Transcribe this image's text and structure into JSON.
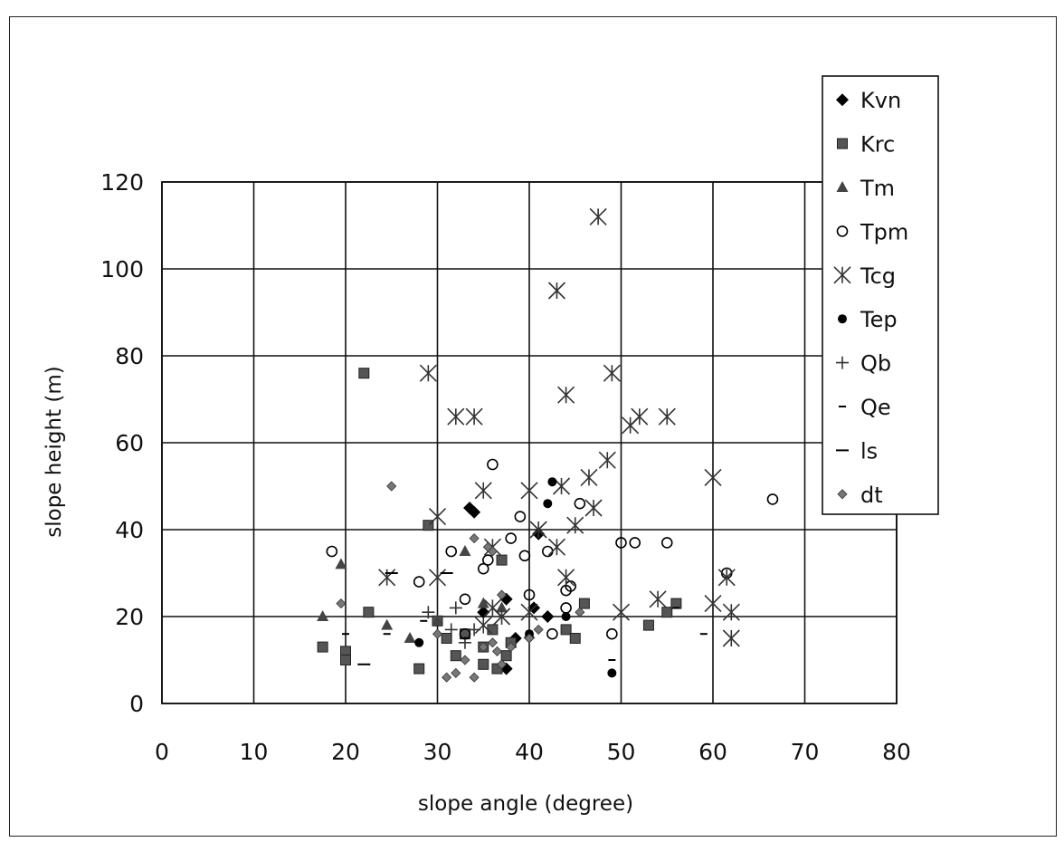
{
  "chart_data": {
    "type": "scatter",
    "xlabel": "slope angle (degree)",
    "ylabel": "slope height (m)",
    "xlim": [
      0,
      80
    ],
    "ylim": [
      0,
      120
    ],
    "xticks": [
      "0",
      "10",
      "20",
      "30",
      "40",
      "50",
      "60",
      "70",
      "80"
    ],
    "yticks": [
      "0",
      "20",
      "40",
      "60",
      "80",
      "100",
      "120"
    ],
    "grid": true,
    "legend_position": "top-right",
    "series": [
      {
        "name": "Kvn",
        "marker": "diamond",
        "color": "#000000",
        "points": [
          [
            33.5,
            45
          ],
          [
            34,
            44
          ],
          [
            37.5,
            24
          ],
          [
            38.5,
            15
          ],
          [
            37.5,
            8
          ],
          [
            42,
            20
          ],
          [
            41,
            39
          ],
          [
            40.5,
            22
          ],
          [
            35,
            21
          ]
        ]
      },
      {
        "name": "Krc",
        "marker": "square",
        "color": "#555555",
        "points": [
          [
            22,
            76
          ],
          [
            17.5,
            13
          ],
          [
            20,
            12
          ],
          [
            20,
            10
          ],
          [
            22.5,
            21
          ],
          [
            28,
            8
          ],
          [
            29,
            41
          ],
          [
            30,
            19
          ],
          [
            31,
            15
          ],
          [
            32,
            11
          ],
          [
            33,
            16
          ],
          [
            35,
            13
          ],
          [
            35,
            9
          ],
          [
            36,
            17
          ],
          [
            37,
            33
          ],
          [
            37.5,
            11
          ],
          [
            38,
            14
          ],
          [
            36.5,
            8
          ],
          [
            44,
            17
          ],
          [
            45,
            15
          ],
          [
            46,
            23
          ],
          [
            53,
            18
          ],
          [
            55,
            21
          ],
          [
            56,
            23
          ]
        ]
      },
      {
        "name": "Tm",
        "marker": "triangle",
        "color": "#444444",
        "points": [
          [
            17.5,
            20
          ],
          [
            19.5,
            32
          ],
          [
            24.5,
            18
          ],
          [
            27,
            15
          ],
          [
            30,
            19
          ],
          [
            33,
            35
          ],
          [
            35,
            23
          ],
          [
            37,
            22
          ],
          [
            40,
            16
          ]
        ]
      },
      {
        "name": "Tpm",
        "marker": "circle",
        "color": "#000000",
        "points": [
          [
            18.5,
            35
          ],
          [
            28,
            28
          ],
          [
            31.5,
            35
          ],
          [
            33,
            24
          ],
          [
            33,
            16
          ],
          [
            35,
            31
          ],
          [
            35.5,
            33
          ],
          [
            36,
            55
          ],
          [
            38,
            38
          ],
          [
            39,
            43
          ],
          [
            39.5,
            34
          ],
          [
            40,
            25
          ],
          [
            42,
            35
          ],
          [
            42.5,
            16
          ],
          [
            44,
            22
          ],
          [
            44,
            26
          ],
          [
            44.5,
            27
          ],
          [
            45.5,
            46
          ],
          [
            49,
            16
          ],
          [
            50,
            37
          ],
          [
            51.5,
            37
          ],
          [
            55,
            37
          ],
          [
            61.5,
            30
          ],
          [
            66.5,
            47
          ]
        ]
      },
      {
        "name": "Tcg",
        "marker": "asterisk",
        "color": "#333333",
        "points": [
          [
            24.5,
            29
          ],
          [
            29,
            76
          ],
          [
            30,
            43
          ],
          [
            30,
            29
          ],
          [
            32,
            66
          ],
          [
            34,
            66
          ],
          [
            35,
            49
          ],
          [
            36,
            36
          ],
          [
            40,
            49
          ],
          [
            41,
            40
          ],
          [
            43,
            36
          ],
          [
            43.5,
            50
          ],
          [
            44,
            71
          ],
          [
            43,
            95
          ],
          [
            47.5,
            112
          ],
          [
            45,
            41
          ],
          [
            46.5,
            52
          ],
          [
            47,
            45
          ],
          [
            48.5,
            56
          ],
          [
            49,
            76
          ],
          [
            50,
            21
          ],
          [
            51,
            64
          ],
          [
            52,
            66
          ],
          [
            55,
            66
          ],
          [
            54,
            24
          ],
          [
            60,
            52
          ],
          [
            60,
            23
          ],
          [
            62,
            15
          ],
          [
            61.5,
            29
          ],
          [
            62,
            21
          ],
          [
            44,
            29
          ],
          [
            36,
            22
          ],
          [
            35,
            18
          ],
          [
            40,
            21
          ],
          [
            37,
            20
          ]
        ]
      },
      {
        "name": "Tep",
        "marker": "dot",
        "color": "#000000",
        "points": [
          [
            28,
            14
          ],
          [
            42,
            46
          ],
          [
            42.5,
            51
          ],
          [
            49,
            7
          ],
          [
            44,
            20
          ],
          [
            40,
            16
          ]
        ]
      },
      {
        "name": "Qb",
        "marker": "plus",
        "color": "#333333",
        "points": [
          [
            29,
            21
          ],
          [
            31.5,
            17
          ],
          [
            32,
            22
          ],
          [
            33,
            14
          ],
          [
            34,
            17
          ]
        ]
      },
      {
        "name": "Qe",
        "marker": "dash",
        "color": "#000000",
        "points": [
          [
            20,
            16
          ],
          [
            24.5,
            16
          ],
          [
            28.5,
            19
          ],
          [
            33,
            15
          ],
          [
            49,
            10
          ],
          [
            59,
            16
          ],
          [
            56,
            22
          ]
        ]
      },
      {
        "name": "ls",
        "marker": "longdash",
        "color": "#000000",
        "points": [
          [
            22,
            9
          ],
          [
            25,
            30
          ],
          [
            31,
            30
          ]
        ]
      },
      {
        "name": "dt",
        "marker": "smalldiamond",
        "color": "#777777",
        "points": [
          [
            19.5,
            23
          ],
          [
            25,
            50
          ],
          [
            30,
            16
          ],
          [
            31,
            6
          ],
          [
            32,
            7
          ],
          [
            34,
            6
          ],
          [
            36,
            35
          ],
          [
            37,
            9
          ],
          [
            38,
            13
          ],
          [
            33,
            10
          ],
          [
            35,
            13
          ],
          [
            37,
            25
          ],
          [
            36,
            14
          ],
          [
            40,
            15
          ],
          [
            41,
            17
          ],
          [
            45.5,
            21
          ],
          [
            34,
            38
          ],
          [
            35.5,
            36
          ],
          [
            36.5,
            12
          ]
        ]
      }
    ]
  }
}
